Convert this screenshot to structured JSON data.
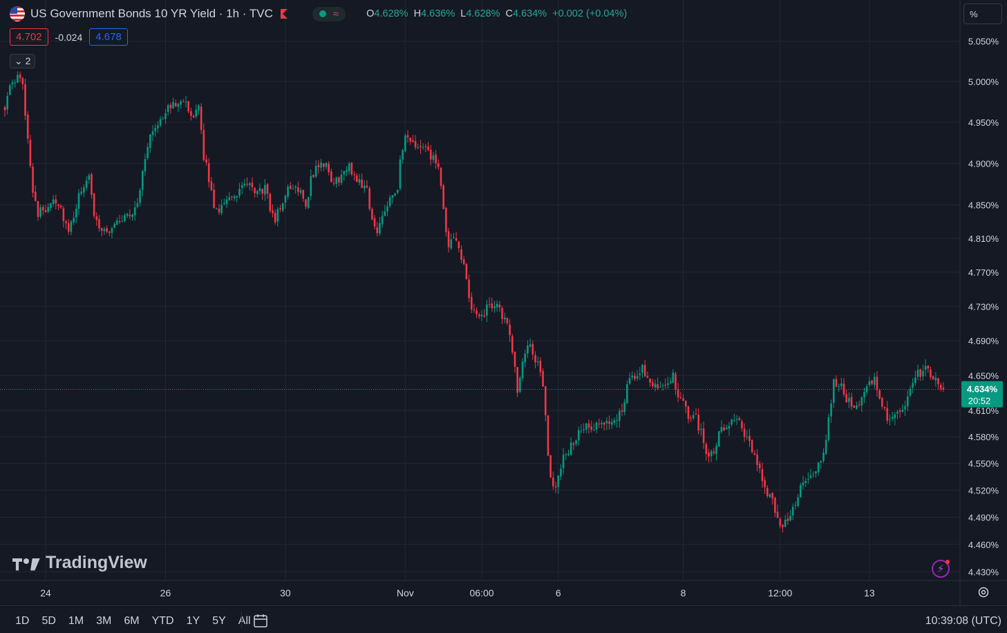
{
  "header": {
    "title": "US Government Bonds 10 YR Yield · 1h · TVC",
    "ohlc": [
      {
        "k": "O",
        "v": "4.628%"
      },
      {
        "k": "H",
        "v": "4.636%"
      },
      {
        "k": "L",
        "v": "4.628%"
      },
      {
        "k": "C",
        "v": "4.634%"
      }
    ],
    "change": "+0.002 (+0.04%)",
    "bid": "4.702",
    "spread": "-0.024",
    "ask": "4.678",
    "indicators_toggle": "2",
    "unit": "%"
  },
  "branding": {
    "watermark": "TradingView"
  },
  "price_label": {
    "value": "4.634%",
    "countdown": "20:52",
    "color": "#089981"
  },
  "colors": {
    "up": "#089981",
    "down": "#f23645",
    "background": "#151924",
    "grid": "#232734",
    "axis_text": "#d1d4dc"
  },
  "icons": [
    "us-flag-icon",
    "red-flag-icon",
    "market-open-dot-icon",
    "wave-icon",
    "chevron-down-icon",
    "bolt-icon",
    "settings-gear-icon",
    "calendar-goto-icon"
  ],
  "bottom_bar": {
    "ranges": [
      "1D",
      "5D",
      "1M",
      "3M",
      "6M",
      "YTD",
      "1Y",
      "5Y",
      "All"
    ],
    "clock": "10:39:08 (UTC)"
  },
  "chart_data": {
    "type": "candlestick",
    "title": "US Government Bonds 10 YR Yield",
    "interval": "1h",
    "y_axis": {
      "ticks": [
        5.05,
        5.0,
        4.95,
        4.9,
        4.85,
        4.81,
        4.77,
        4.73,
        4.69,
        4.65,
        4.61,
        4.58,
        4.55,
        4.52,
        4.49,
        4.46,
        4.43
      ],
      "tick_labels": [
        "5.050%",
        "5.000%",
        "4.950%",
        "4.900%",
        "4.850%",
        "4.810%",
        "4.770%",
        "4.730%",
        "4.690%",
        "4.650%",
        "4.610%",
        "4.580%",
        "4.550%",
        "4.520%",
        "4.490%",
        "4.460%",
        "4.430%"
      ],
      "scale": "log",
      "range": [
        4.428,
        5.06
      ],
      "position": "right"
    },
    "x_axis": {
      "ticks": [
        "24",
        "26",
        "30",
        "Nov",
        "06:00",
        "6",
        "8",
        "12:00",
        "13"
      ],
      "tick_candle_index": [
        16,
        63,
        110,
        157,
        187,
        217,
        266,
        304,
        339
      ]
    },
    "grid": true,
    "last_price": 4.634,
    "path": [
      [
        0,
        4.97
      ],
      [
        2,
        4.99
      ],
      [
        5,
        5.005
      ],
      [
        7,
        4.995
      ],
      [
        9,
        4.93
      ],
      [
        11,
        4.87
      ],
      [
        13,
        4.84
      ],
      [
        16,
        4.845
      ],
      [
        19,
        4.86
      ],
      [
        22,
        4.845
      ],
      [
        25,
        4.815
      ],
      [
        27,
        4.835
      ],
      [
        30,
        4.87
      ],
      [
        33,
        4.88
      ],
      [
        35,
        4.84
      ],
      [
        38,
        4.82
      ],
      [
        41,
        4.82
      ],
      [
        44,
        4.83
      ],
      [
        47,
        4.835
      ],
      [
        50,
        4.84
      ],
      [
        53,
        4.865
      ],
      [
        55,
        4.91
      ],
      [
        58,
        4.94
      ],
      [
        61,
        4.955
      ],
      [
        64,
        4.965
      ],
      [
        67,
        4.975
      ],
      [
        70,
        4.98
      ],
      [
        72,
        4.96
      ],
      [
        74,
        4.95
      ],
      [
        76,
        4.97
      ],
      [
        78,
        4.91
      ],
      [
        80,
        4.88
      ],
      [
        82,
        4.85
      ],
      [
        84,
        4.845
      ],
      [
        87,
        4.86
      ],
      [
        90,
        4.855
      ],
      [
        93,
        4.875
      ],
      [
        96,
        4.87
      ],
      [
        99,
        4.865
      ],
      [
        102,
        4.87
      ],
      [
        104,
        4.845
      ],
      [
        106,
        4.835
      ],
      [
        108,
        4.845
      ],
      [
        110,
        4.865
      ],
      [
        113,
        4.87
      ],
      [
        116,
        4.87
      ],
      [
        118,
        4.85
      ],
      [
        120,
        4.88
      ],
      [
        123,
        4.9
      ],
      [
        126,
        4.895
      ],
      [
        129,
        4.875
      ],
      [
        132,
        4.885
      ],
      [
        135,
        4.895
      ],
      [
        137,
        4.885
      ],
      [
        140,
        4.875
      ],
      [
        142,
        4.87
      ],
      [
        144,
        4.83
      ],
      [
        146,
        4.815
      ],
      [
        148,
        4.84
      ],
      [
        151,
        4.86
      ],
      [
        154,
        4.87
      ],
      [
        155,
        4.9
      ],
      [
        157,
        4.93
      ],
      [
        159,
        4.925
      ],
      [
        162,
        4.92
      ],
      [
        165,
        4.915
      ],
      [
        168,
        4.905
      ],
      [
        170,
        4.895
      ],
      [
        172,
        4.84
      ],
      [
        174,
        4.8
      ],
      [
        177,
        4.81
      ],
      [
        180,
        4.78
      ],
      [
        182,
        4.735
      ],
      [
        184,
        4.72
      ],
      [
        187,
        4.72
      ],
      [
        190,
        4.73
      ],
      [
        193,
        4.735
      ],
      [
        195,
        4.72
      ],
      [
        197,
        4.705
      ],
      [
        199,
        4.68
      ],
      [
        201,
        4.63
      ],
      [
        203,
        4.67
      ],
      [
        205,
        4.685
      ],
      [
        207,
        4.675
      ],
      [
        209,
        4.665
      ],
      [
        211,
        4.64
      ],
      [
        213,
        4.56
      ],
      [
        215,
        4.52
      ],
      [
        217,
        4.535
      ],
      [
        219,
        4.555
      ],
      [
        221,
        4.565
      ],
      [
        224,
        4.58
      ],
      [
        227,
        4.59
      ],
      [
        230,
        4.588
      ],
      [
        233,
        4.592
      ],
      [
        236,
        4.595
      ],
      [
        239,
        4.6
      ],
      [
        242,
        4.61
      ],
      [
        244,
        4.64
      ],
      [
        247,
        4.648
      ],
      [
        250,
        4.658
      ],
      [
        253,
        4.645
      ],
      [
        256,
        4.638
      ],
      [
        259,
        4.642
      ],
      [
        262,
        4.648
      ],
      [
        264,
        4.625
      ],
      [
        266,
        4.615
      ],
      [
        268,
        4.605
      ],
      [
        271,
        4.6
      ],
      [
        273,
        4.585
      ],
      [
        275,
        4.565
      ],
      [
        277,
        4.56
      ],
      [
        279,
        4.575
      ],
      [
        281,
        4.588
      ],
      [
        283,
        4.595
      ],
      [
        285,
        4.6
      ],
      [
        287,
        4.605
      ],
      [
        289,
        4.59
      ],
      [
        291,
        4.575
      ],
      [
        293,
        4.565
      ],
      [
        295,
        4.545
      ],
      [
        297,
        4.535
      ],
      [
        299,
        4.515
      ],
      [
        301,
        4.505
      ],
      [
        303,
        4.49
      ],
      [
        305,
        4.48
      ],
      [
        307,
        4.49
      ],
      [
        309,
        4.5
      ],
      [
        311,
        4.51
      ],
      [
        313,
        4.53
      ],
      [
        316,
        4.535
      ],
      [
        319,
        4.545
      ],
      [
        321,
        4.56
      ],
      [
        323,
        4.6
      ],
      [
        325,
        4.64
      ],
      [
        328,
        4.642
      ],
      [
        330,
        4.625
      ],
      [
        333,
        4.618
      ],
      [
        336,
        4.62
      ],
      [
        339,
        4.638
      ],
      [
        341,
        4.645
      ],
      [
        344,
        4.62
      ],
      [
        347,
        4.595
      ],
      [
        350,
        4.605
      ],
      [
        352,
        4.612
      ],
      [
        355,
        4.63
      ],
      [
        358,
        4.652
      ],
      [
        361,
        4.656
      ],
      [
        364,
        4.648
      ],
      [
        366,
        4.638
      ],
      [
        368,
        4.634
      ]
    ],
    "candle_count": 369
  }
}
